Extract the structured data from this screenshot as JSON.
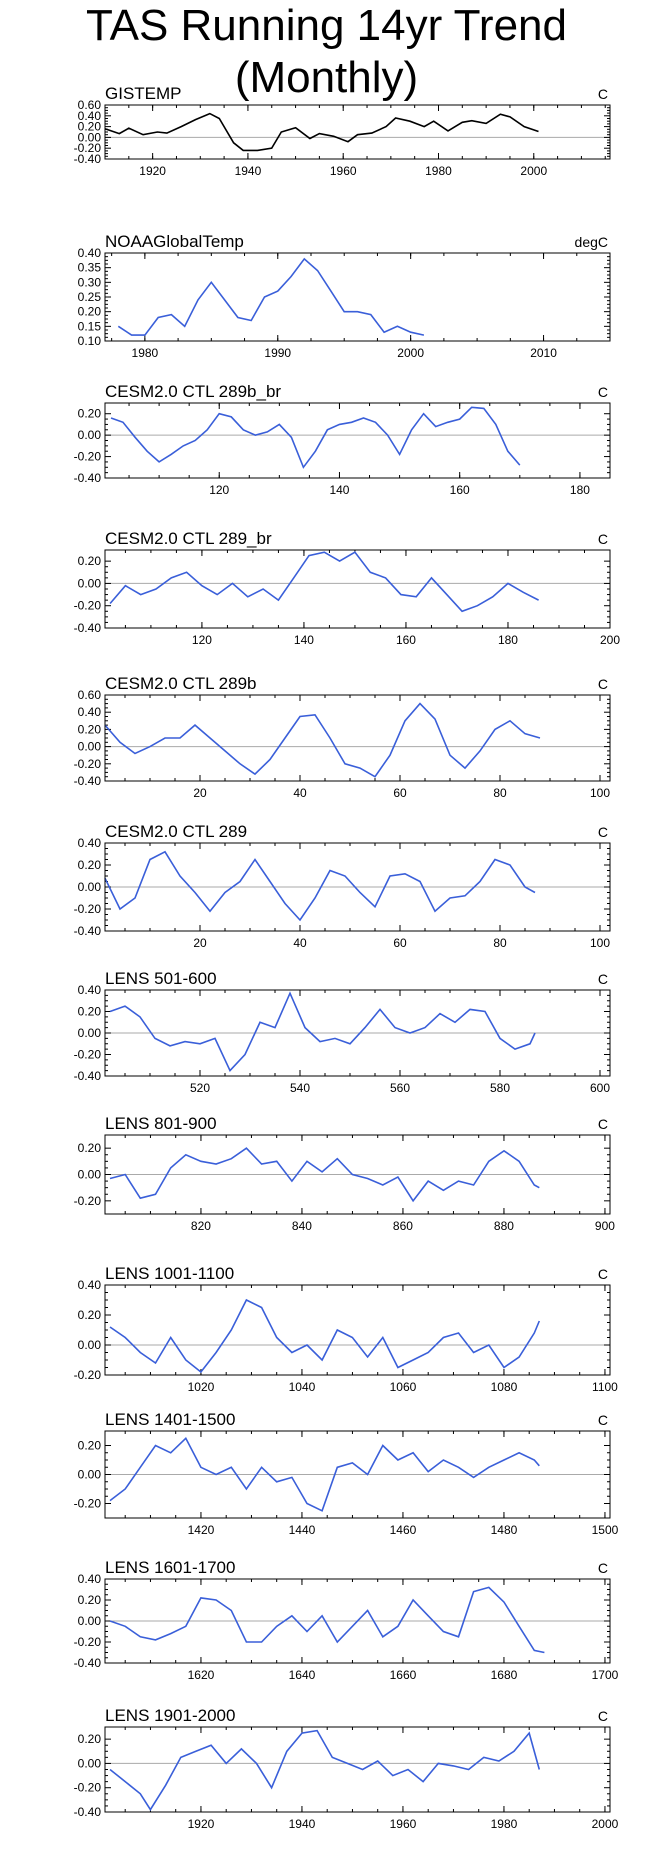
{
  "title": "TAS Running 14yr Trend (Monthly)",
  "chart_data": [
    {
      "type": "line",
      "title": "GISTEMP",
      "unit": "C",
      "color": "#000000",
      "xlim": [
        1910,
        2016
      ],
      "ylim": [
        -0.4,
        0.6
      ],
      "xticks": [
        1920,
        1940,
        1960,
        1980,
        2000
      ],
      "yticks": [
        "0.60",
        "0.40",
        "0.20",
        "0.00",
        "-0.20",
        "-0.40"
      ],
      "x": [
        1910,
        1913,
        1915,
        1918,
        1921,
        1923,
        1926,
        1929,
        1932,
        1934,
        1937,
        1939,
        1942,
        1945,
        1947,
        1950,
        1953,
        1955,
        1958,
        1961,
        1963,
        1966,
        1969,
        1971,
        1974,
        1977,
        1979,
        1982,
        1985,
        1987,
        1990,
        1993,
        1995,
        1998,
        2001
      ],
      "values": [
        0.16,
        0.07,
        0.17,
        0.05,
        0.1,
        0.08,
        0.2,
        0.33,
        0.44,
        0.35,
        -0.1,
        -0.24,
        -0.24,
        -0.2,
        0.1,
        0.18,
        -0.02,
        0.07,
        0.02,
        -0.08,
        0.05,
        0.08,
        0.2,
        0.36,
        0.3,
        0.2,
        0.3,
        0.12,
        0.28,
        0.31,
        0.26,
        0.43,
        0.38,
        0.2,
        0.11
      ]
    },
    {
      "type": "line",
      "title": "NOAAGlobalTemp",
      "unit": "degC",
      "color": "#3a5fd9",
      "xlim": [
        1977,
        2015
      ],
      "ylim": [
        0.1,
        0.4
      ],
      "xticks": [
        1980,
        1990,
        2000,
        2010
      ],
      "yticks": [
        "0.40",
        "0.35",
        "0.30",
        "0.25",
        "0.20",
        "0.15",
        "0.10"
      ],
      "x": [
        1978,
        1979,
        1980,
        1981,
        1982,
        1983,
        1984,
        1985,
        1986,
        1987,
        1988,
        1989,
        1990,
        1991,
        1992,
        1993,
        1994,
        1995,
        1996,
        1997,
        1998,
        1999,
        2000,
        2001
      ],
      "values": [
        0.15,
        0.12,
        0.12,
        0.18,
        0.19,
        0.15,
        0.24,
        0.3,
        0.24,
        0.18,
        0.17,
        0.25,
        0.27,
        0.32,
        0.38,
        0.34,
        0.27,
        0.2,
        0.2,
        0.19,
        0.13,
        0.15,
        0.13,
        0.12
      ]
    },
    {
      "type": "line",
      "title": "CESM2.0 CTL 289b_br",
      "unit": "C",
      "color": "#3a5fd9",
      "xlim": [
        101,
        185
      ],
      "ylim": [
        -0.4,
        0.3
      ],
      "xticks": [
        120,
        140,
        160,
        180
      ],
      "yticks": [
        "0.20",
        "0.00",
        "-0.20",
        "-0.40"
      ],
      "x": [
        102,
        104,
        106,
        108,
        110,
        112,
        114,
        116,
        118,
        120,
        122,
        124,
        126,
        128,
        130,
        132,
        134,
        136,
        138,
        140,
        142,
        144,
        146,
        148,
        150,
        152,
        154,
        156,
        158,
        160,
        162,
        164,
        166,
        168,
        170
      ],
      "values": [
        0.16,
        0.12,
        -0.02,
        -0.15,
        -0.25,
        -0.18,
        -0.1,
        -0.05,
        0.05,
        0.2,
        0.17,
        0.05,
        0.0,
        0.03,
        0.1,
        -0.02,
        -0.3,
        -0.15,
        0.05,
        0.1,
        0.12,
        0.16,
        0.12,
        0.0,
        -0.18,
        0.05,
        0.2,
        0.08,
        0.12,
        0.15,
        0.26,
        0.25,
        0.1,
        -0.15,
        -0.28
      ]
    },
    {
      "type": "line",
      "title": "CESM2.0 CTL 289_br",
      "unit": "C",
      "color": "#3a5fd9",
      "xlim": [
        101,
        200
      ],
      "ylim": [
        -0.4,
        0.3
      ],
      "xticks": [
        120,
        140,
        160,
        180,
        200
      ],
      "yticks": [
        "0.20",
        "0.00",
        "-0.20",
        "-0.40"
      ],
      "x": [
        102,
        105,
        108,
        111,
        114,
        117,
        120,
        123,
        126,
        129,
        132,
        135,
        138,
        141,
        144,
        147,
        150,
        153,
        156,
        159,
        162,
        165,
        168,
        171,
        174,
        177,
        180,
        183,
        186
      ],
      "values": [
        -0.18,
        -0.02,
        -0.1,
        -0.05,
        0.05,
        0.1,
        -0.02,
        -0.1,
        0.0,
        -0.12,
        -0.05,
        -0.15,
        0.05,
        0.25,
        0.28,
        0.2,
        0.28,
        0.1,
        0.05,
        -0.1,
        -0.12,
        0.05,
        -0.1,
        -0.25,
        -0.2,
        -0.12,
        0.0,
        -0.08,
        -0.15
      ]
    },
    {
      "type": "line",
      "title": "CESM2.0 CTL 289b",
      "unit": "C",
      "color": "#3a5fd9",
      "xlim": [
        1,
        102
      ],
      "ylim": [
        -0.4,
        0.6
      ],
      "xticks": [
        20,
        40,
        60,
        80,
        100
      ],
      "yticks": [
        "0.60",
        "0.40",
        "0.20",
        "0.00",
        "-0.20",
        "-0.40"
      ],
      "x": [
        1,
        4,
        7,
        10,
        13,
        16,
        19,
        22,
        25,
        28,
        31,
        34,
        37,
        40,
        43,
        46,
        49,
        52,
        55,
        58,
        61,
        64,
        67,
        70,
        73,
        76,
        79,
        82,
        85,
        88
      ],
      "values": [
        0.25,
        0.05,
        -0.08,
        0.0,
        0.1,
        0.1,
        0.25,
        0.1,
        -0.05,
        -0.2,
        -0.32,
        -0.15,
        0.1,
        0.35,
        0.37,
        0.1,
        -0.2,
        -0.25,
        -0.35,
        -0.1,
        0.3,
        0.5,
        0.32,
        -0.1,
        -0.25,
        -0.05,
        0.2,
        0.3,
        0.15,
        0.1
      ]
    },
    {
      "type": "line",
      "title": "CESM2.0 CTL 289",
      "unit": "C",
      "color": "#3a5fd9",
      "xlim": [
        1,
        102
      ],
      "ylim": [
        -0.4,
        0.4
      ],
      "xticks": [
        20,
        40,
        60,
        80,
        100
      ],
      "yticks": [
        "0.40",
        "0.20",
        "0.00",
        "-0.20",
        "-0.40"
      ],
      "x": [
        1,
        4,
        7,
        10,
        13,
        16,
        19,
        22,
        25,
        28,
        31,
        34,
        37,
        40,
        43,
        46,
        49,
        52,
        55,
        58,
        61,
        64,
        67,
        70,
        73,
        76,
        79,
        82,
        85,
        87
      ],
      "values": [
        0.08,
        -0.2,
        -0.1,
        0.25,
        0.32,
        0.1,
        -0.05,
        -0.22,
        -0.05,
        0.05,
        0.25,
        0.05,
        -0.15,
        -0.3,
        -0.1,
        0.15,
        0.1,
        -0.05,
        -0.18,
        0.1,
        0.12,
        0.05,
        -0.22,
        -0.1,
        -0.08,
        0.05,
        0.25,
        0.2,
        0.0,
        -0.05
      ]
    },
    {
      "type": "line",
      "title": "LENS 501-600",
      "unit": "C",
      "color": "#3a5fd9",
      "xlim": [
        501,
        602
      ],
      "ylim": [
        -0.4,
        0.4
      ],
      "xticks": [
        520,
        540,
        560,
        580,
        600
      ],
      "yticks": [
        "0.40",
        "0.20",
        "0.00",
        "-0.20",
        "-0.40"
      ],
      "x": [
        502,
        505,
        508,
        511,
        514,
        517,
        520,
        523,
        526,
        529,
        532,
        535,
        538,
        541,
        544,
        547,
        550,
        553,
        556,
        559,
        562,
        565,
        568,
        571,
        574,
        577,
        580,
        583,
        586,
        587
      ],
      "values": [
        0.2,
        0.25,
        0.15,
        -0.05,
        -0.12,
        -0.08,
        -0.1,
        -0.05,
        -0.35,
        -0.2,
        0.1,
        0.05,
        0.37,
        0.05,
        -0.08,
        -0.05,
        -0.1,
        0.05,
        0.22,
        0.05,
        0.0,
        0.05,
        0.18,
        0.1,
        0.22,
        0.2,
        -0.05,
        -0.15,
        -0.1,
        0.0
      ]
    },
    {
      "type": "line",
      "title": "LENS 801-900",
      "unit": "C",
      "color": "#3a5fd9",
      "xlim": [
        801,
        901
      ],
      "ylim": [
        -0.3,
        0.3
      ],
      "xticks": [
        820,
        840,
        860,
        880,
        900
      ],
      "yticks": [
        "0.20",
        "0.00",
        "-0.20"
      ],
      "x": [
        802,
        805,
        808,
        811,
        814,
        817,
        820,
        823,
        826,
        829,
        832,
        835,
        838,
        841,
        844,
        847,
        850,
        853,
        856,
        859,
        862,
        865,
        868,
        871,
        874,
        877,
        880,
        883,
        886,
        887
      ],
      "values": [
        -0.03,
        0.0,
        -0.18,
        -0.15,
        0.05,
        0.15,
        0.1,
        0.08,
        0.12,
        0.2,
        0.08,
        0.1,
        -0.05,
        0.1,
        0.02,
        0.12,
        0.0,
        -0.03,
        -0.08,
        -0.02,
        -0.2,
        -0.05,
        -0.12,
        -0.05,
        -0.08,
        0.1,
        0.18,
        0.1,
        -0.08,
        -0.1
      ]
    },
    {
      "type": "line",
      "title": "LENS 1001-1100",
      "unit": "C",
      "color": "#3a5fd9",
      "xlim": [
        1001,
        1101
      ],
      "ylim": [
        -0.2,
        0.4
      ],
      "xticks": [
        1020,
        1040,
        1060,
        1080,
        1100
      ],
      "yticks": [
        "0.40",
        "0.20",
        "0.00",
        "-0.20"
      ],
      "x": [
        1002,
        1005,
        1008,
        1011,
        1014,
        1017,
        1020,
        1023,
        1026,
        1029,
        1032,
        1035,
        1038,
        1041,
        1044,
        1047,
        1050,
        1053,
        1056,
        1059,
        1062,
        1065,
        1068,
        1071,
        1074,
        1077,
        1080,
        1083,
        1086,
        1087
      ],
      "values": [
        0.12,
        0.05,
        -0.05,
        -0.12,
        0.05,
        -0.1,
        -0.18,
        -0.05,
        0.1,
        0.3,
        0.25,
        0.05,
        -0.05,
        0.0,
        -0.1,
        0.1,
        0.05,
        -0.08,
        0.05,
        -0.15,
        -0.1,
        -0.05,
        0.05,
        0.08,
        -0.05,
        0.0,
        -0.15,
        -0.08,
        0.08,
        0.16
      ]
    },
    {
      "type": "line",
      "title": "LENS 1401-1500",
      "unit": "C",
      "color": "#3a5fd9",
      "xlim": [
        1401,
        1501
      ],
      "ylim": [
        -0.3,
        0.3
      ],
      "xticks": [
        1420,
        1440,
        1460,
        1480,
        1500
      ],
      "yticks": [
        "0.20",
        "0.00",
        "-0.20"
      ],
      "x": [
        1402,
        1405,
        1408,
        1411,
        1414,
        1417,
        1420,
        1423,
        1426,
        1429,
        1432,
        1435,
        1438,
        1441,
        1444,
        1447,
        1450,
        1453,
        1456,
        1459,
        1462,
        1465,
        1468,
        1471,
        1474,
        1477,
        1480,
        1483,
        1486,
        1487
      ],
      "values": [
        -0.18,
        -0.1,
        0.05,
        0.2,
        0.15,
        0.25,
        0.05,
        0.0,
        0.05,
        -0.1,
        0.05,
        -0.05,
        -0.02,
        -0.2,
        -0.25,
        0.05,
        0.08,
        0.0,
        0.2,
        0.1,
        0.15,
        0.02,
        0.1,
        0.05,
        -0.02,
        0.05,
        0.1,
        0.15,
        0.1,
        0.06
      ]
    },
    {
      "type": "line",
      "title": "LENS 1601-1700",
      "unit": "C",
      "color": "#3a5fd9",
      "xlim": [
        1601,
        1701
      ],
      "ylim": [
        -0.4,
        0.4
      ],
      "xticks": [
        1620,
        1640,
        1660,
        1680,
        1700
      ],
      "yticks": [
        "0.40",
        "0.20",
        "0.00",
        "-0.20",
        "-0.40"
      ],
      "x": [
        1602,
        1605,
        1608,
        1611,
        1614,
        1617,
        1620,
        1623,
        1626,
        1629,
        1632,
        1635,
        1638,
        1641,
        1644,
        1647,
        1650,
        1653,
        1656,
        1659,
        1662,
        1665,
        1668,
        1671,
        1674,
        1677,
        1680,
        1683,
        1686,
        1688
      ],
      "values": [
        0.0,
        -0.05,
        -0.15,
        -0.18,
        -0.12,
        -0.05,
        0.22,
        0.2,
        0.1,
        -0.2,
        -0.2,
        -0.05,
        0.05,
        -0.1,
        0.05,
        -0.2,
        -0.05,
        0.1,
        -0.15,
        -0.05,
        0.2,
        0.05,
        -0.1,
        -0.15,
        0.28,
        0.32,
        0.18,
        -0.05,
        -0.28,
        -0.3
      ]
    },
    {
      "type": "line",
      "title": "LENS 1901-2000",
      "unit": "C",
      "color": "#3a5fd9",
      "xlim": [
        1901,
        2001
      ],
      "ylim": [
        -0.4,
        0.3
      ],
      "xticks": [
        1920,
        1940,
        1960,
        1980,
        2000
      ],
      "yticks": [
        "0.20",
        "0.00",
        "-0.20",
        "-0.40"
      ],
      "x": [
        1902,
        1905,
        1908,
        1910,
        1913,
        1916,
        1919,
        1922,
        1925,
        1928,
        1931,
        1934,
        1937,
        1940,
        1943,
        1946,
        1949,
        1952,
        1955,
        1958,
        1961,
        1964,
        1967,
        1970,
        1973,
        1976,
        1979,
        1982,
        1985,
        1987
      ],
      "values": [
        -0.05,
        -0.15,
        -0.25,
        -0.38,
        -0.18,
        0.05,
        0.1,
        0.15,
        0.0,
        0.12,
        0.0,
        -0.2,
        0.1,
        0.25,
        0.27,
        0.05,
        0.0,
        -0.05,
        0.02,
        -0.1,
        -0.05,
        -0.15,
        0.0,
        -0.02,
        -0.05,
        0.05,
        0.02,
        0.1,
        0.25,
        -0.05
      ]
    }
  ]
}
